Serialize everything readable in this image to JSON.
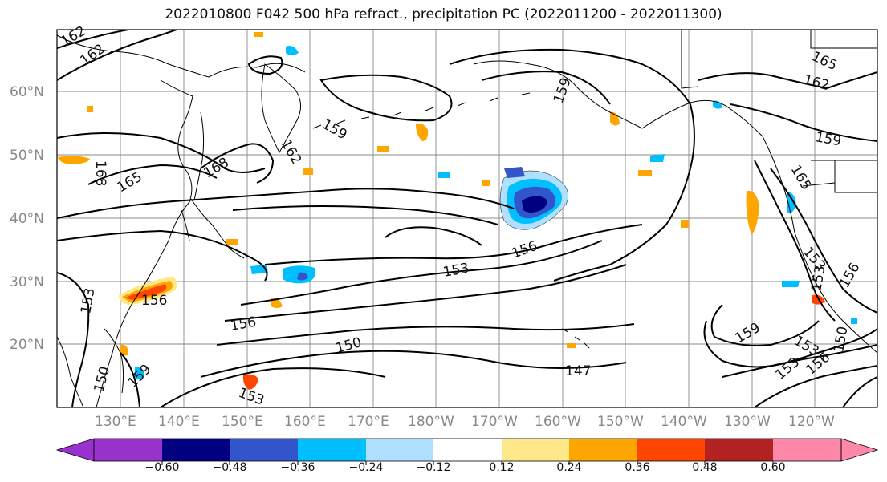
{
  "title": "2022010800 F042 500 hPa refract., precipitation PC (2022011200 - 2022011300)",
  "map": {
    "lat_labels": [
      "60°N",
      "50°N",
      "40°N",
      "30°N",
      "20°N"
    ],
    "lon_labels": [
      "130°E",
      "140°E",
      "150°E",
      "160°E",
      "170°E",
      "180°W",
      "170°W",
      "160°W",
      "150°W",
      "140°W",
      "130°W",
      "120°W"
    ],
    "grid": true
  },
  "contour_labels": [
    "162",
    "162",
    "165",
    "159",
    "162",
    "168",
    "165",
    "168",
    "159",
    "165",
    "162",
    "159",
    "156",
    "153",
    "156",
    "153",
    "156",
    "156",
    "150",
    "147",
    "150",
    "153",
    "153",
    "159",
    "153",
    "156",
    "153",
    "153",
    "150",
    "159"
  ],
  "colorbar": {
    "ticks": [
      "−0.60",
      "−0.48",
      "−0.36",
      "−0.24",
      "−0.12",
      "0.12",
      "0.24",
      "0.36",
      "0.48",
      "0.60"
    ],
    "colors": [
      "#9932cc",
      "#000080",
      "#3355cc",
      "#00bfff",
      "#b0e0ff",
      "#ffffff",
      "#ffe88a",
      "#ffa500",
      "#ff4500",
      "#b22222",
      "#ff88aa"
    ]
  },
  "palette": {
    "contour": "#000000",
    "grid": "#888888",
    "coast": "#000000"
  }
}
